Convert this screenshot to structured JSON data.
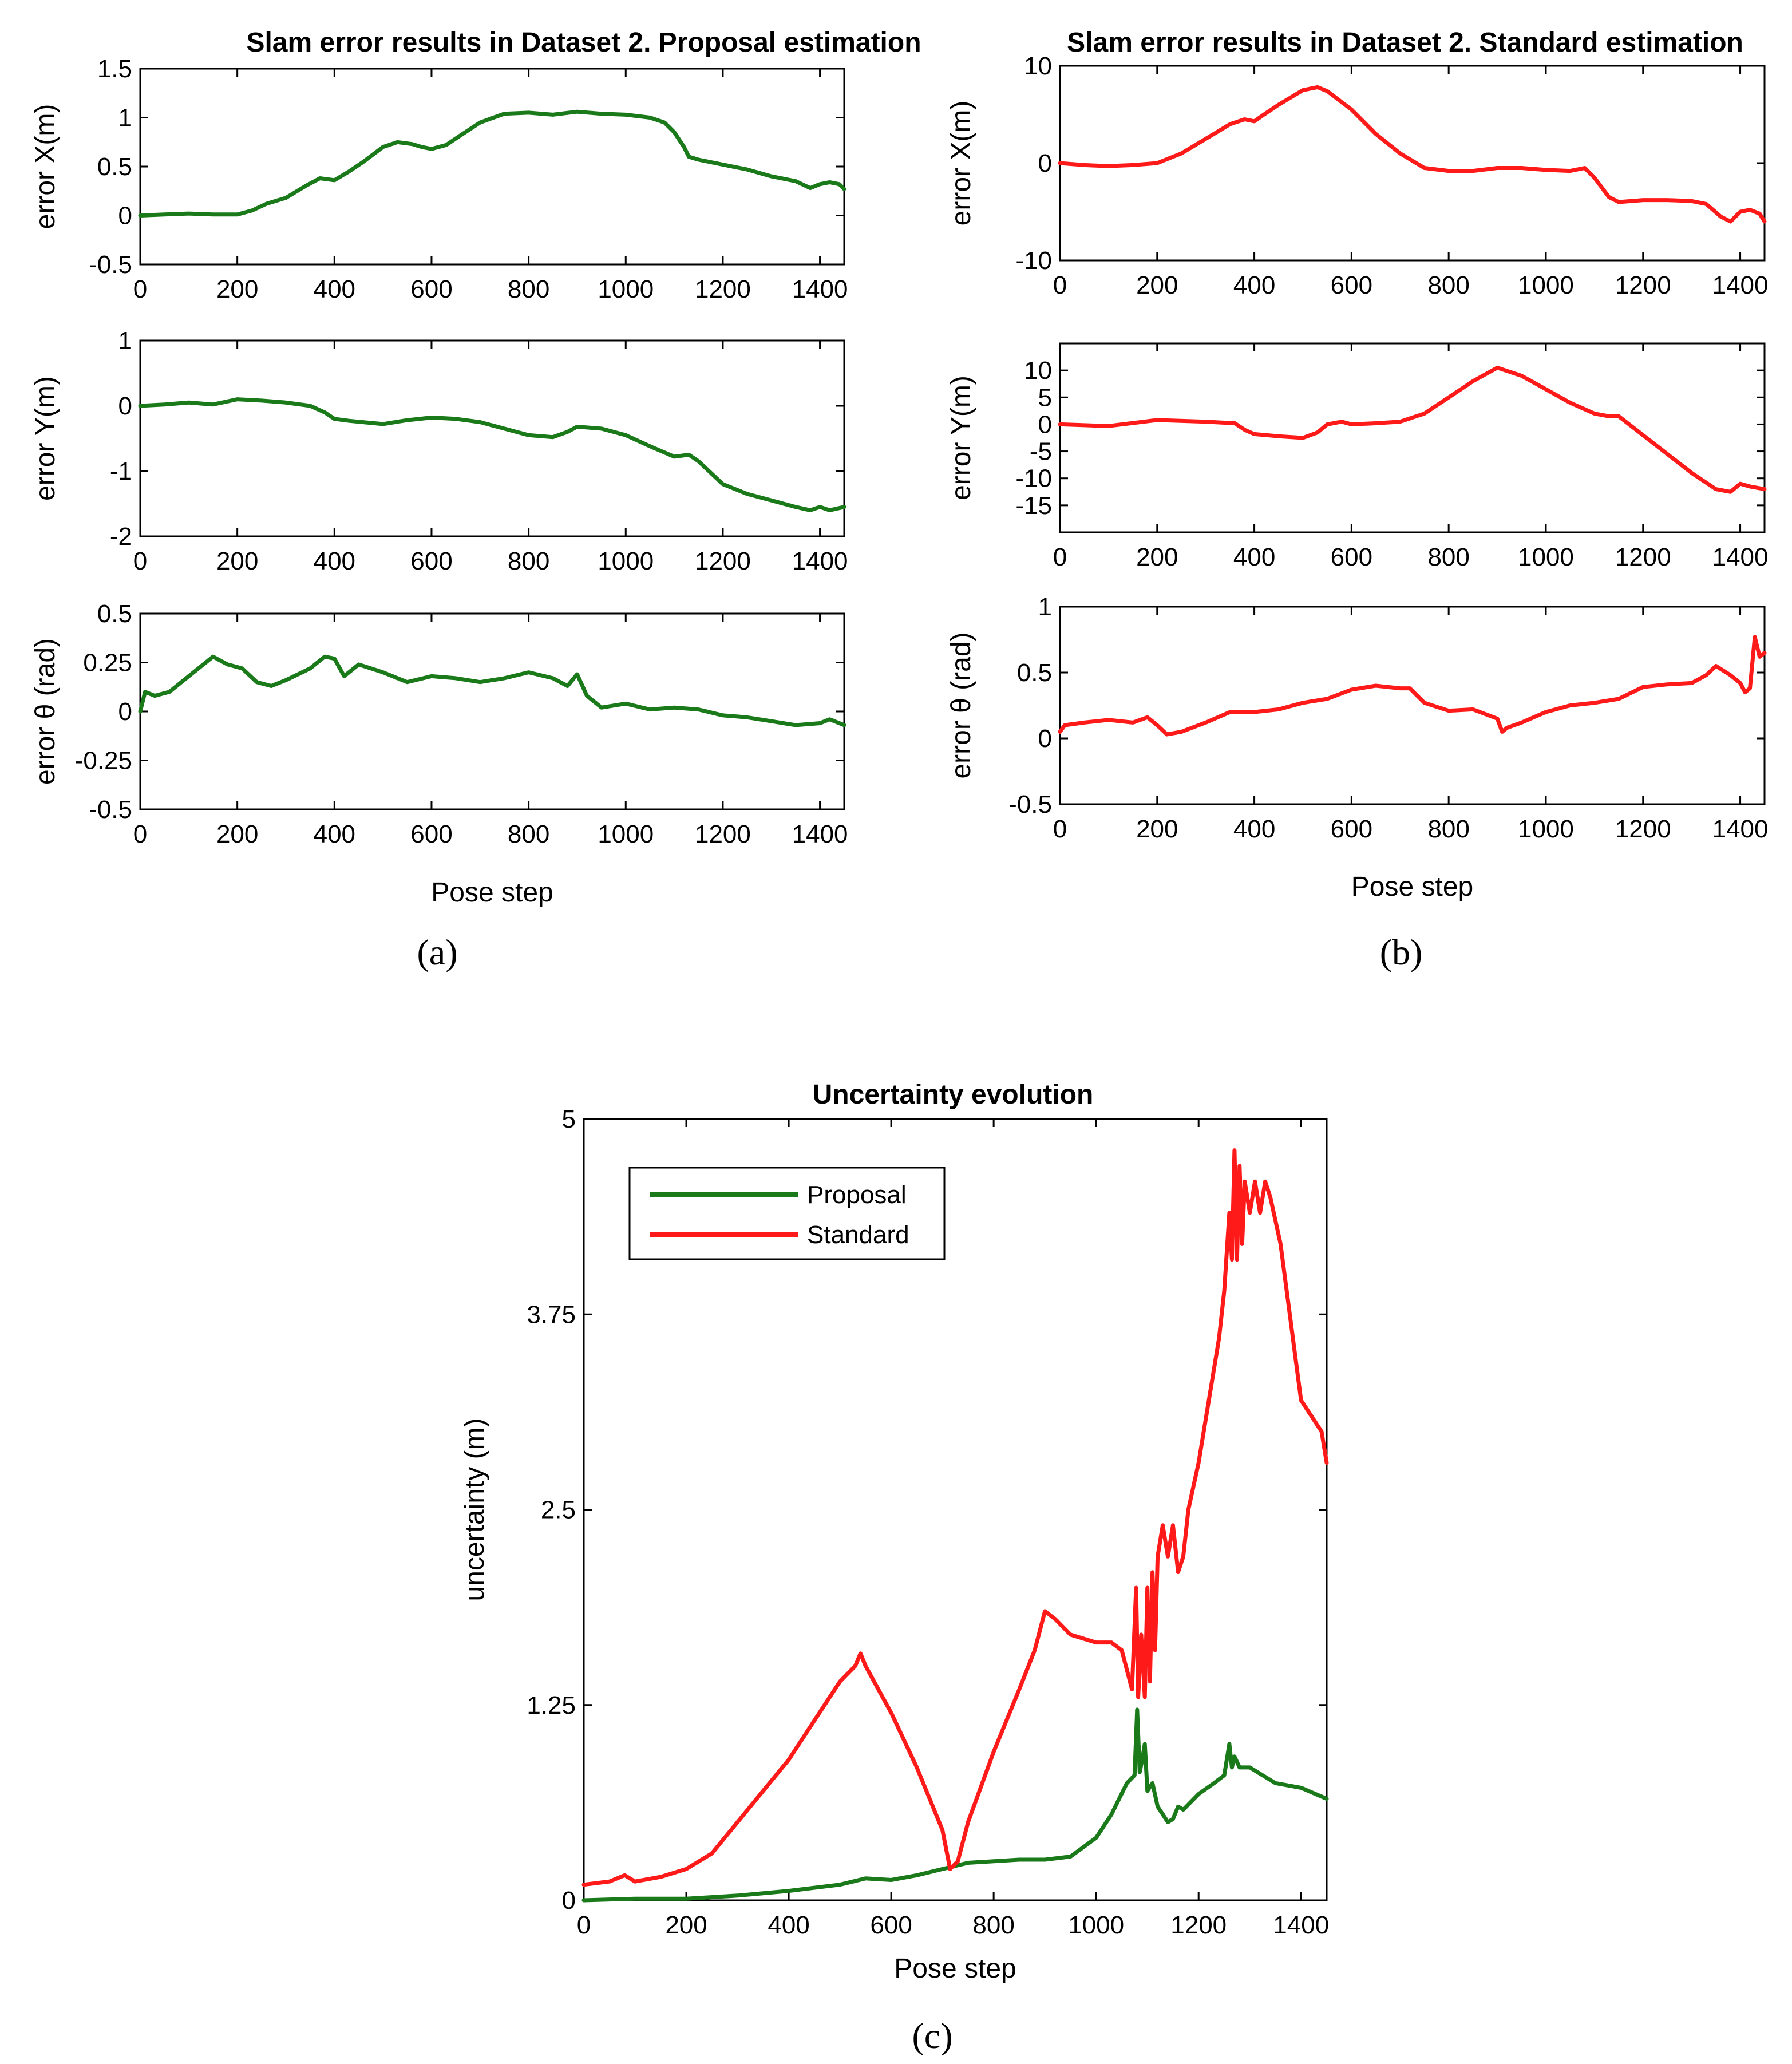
{
  "colors": {
    "proposal": "#1a7a1a",
    "standard": "#ff1a1a",
    "axis": "#000000"
  },
  "captions": {
    "a": "(a)",
    "b": "(b)",
    "c": "(c)"
  },
  "chart_data": [
    {
      "type": "line",
      "id": "a1",
      "title": "Slam error results in Dataset 2. Proposal estimation",
      "xlabel": "",
      "ylabel": "error X(m)",
      "xlim": [
        0,
        1450
      ],
      "ylim": [
        -0.5,
        1.5
      ],
      "xticks": [
        0,
        200,
        400,
        600,
        800,
        1000,
        1200,
        1400
      ],
      "yticks": [
        -0.5,
        0,
        0.5,
        1,
        1.5
      ],
      "ytick_labels": [
        "-0.5",
        "0",
        "0.5",
        "1",
        "1.5"
      ],
      "series": [
        {
          "name": "Proposal",
          "color": "#1a7a1a",
          "x": [
            0,
            50,
            100,
            150,
            200,
            230,
            260,
            300,
            340,
            370,
            400,
            430,
            460,
            500,
            530,
            560,
            580,
            600,
            630,
            660,
            700,
            750,
            800,
            850,
            900,
            950,
            1000,
            1050,
            1080,
            1100,
            1120,
            1130,
            1150,
            1200,
            1250,
            1300,
            1350,
            1380,
            1400,
            1420,
            1440,
            1450
          ],
          "y": [
            0,
            0.01,
            0.02,
            0.01,
            0.01,
            0.05,
            0.12,
            0.18,
            0.3,
            0.38,
            0.36,
            0.45,
            0.55,
            0.7,
            0.75,
            0.73,
            0.7,
            0.68,
            0.72,
            0.82,
            0.95,
            1.04,
            1.05,
            1.03,
            1.06,
            1.04,
            1.03,
            1.0,
            0.95,
            0.85,
            0.7,
            0.6,
            0.57,
            0.52,
            0.47,
            0.4,
            0.35,
            0.28,
            0.32,
            0.34,
            0.32,
            0.27
          ]
        }
      ]
    },
    {
      "type": "line",
      "id": "a2",
      "title": "",
      "xlabel": "",
      "ylabel": "error Y(m)",
      "xlim": [
        0,
        1450
      ],
      "ylim": [
        -2,
        1
      ],
      "xticks": [
        0,
        200,
        400,
        600,
        800,
        1000,
        1200,
        1400
      ],
      "yticks": [
        -2,
        -1,
        0,
        1
      ],
      "ytick_labels": [
        "-2",
        "-1",
        "0",
        "1"
      ],
      "series": [
        {
          "name": "Proposal",
          "color": "#1a7a1a",
          "x": [
            0,
            50,
            100,
            150,
            200,
            250,
            300,
            350,
            380,
            400,
            430,
            500,
            550,
            600,
            650,
            700,
            750,
            800,
            850,
            880,
            900,
            950,
            1000,
            1050,
            1100,
            1130,
            1150,
            1200,
            1250,
            1300,
            1350,
            1380,
            1400,
            1420,
            1450
          ],
          "y": [
            0,
            0.02,
            0.05,
            0.02,
            0.1,
            0.08,
            0.05,
            0.0,
            -0.1,
            -0.2,
            -0.23,
            -0.28,
            -0.22,
            -0.18,
            -0.2,
            -0.25,
            -0.35,
            -0.45,
            -0.48,
            -0.4,
            -0.32,
            -0.35,
            -0.45,
            -0.62,
            -0.78,
            -0.75,
            -0.85,
            -1.2,
            -1.35,
            -1.45,
            -1.55,
            -1.6,
            -1.55,
            -1.6,
            -1.55
          ]
        }
      ]
    },
    {
      "type": "line",
      "id": "a3",
      "title": "",
      "xlabel": "Pose step",
      "ylabel": "error θ (rad)",
      "xlim": [
        0,
        1450
      ],
      "ylim": [
        -0.5,
        0.5
      ],
      "xticks": [
        0,
        200,
        400,
        600,
        800,
        1000,
        1200,
        1400
      ],
      "yticks": [
        -0.5,
        -0.25,
        0,
        0.25,
        0.5
      ],
      "ytick_labels": [
        "-0.5",
        "-0.25",
        "0",
        "0.25",
        "0.5"
      ],
      "series": [
        {
          "name": "Proposal",
          "color": "#1a7a1a",
          "x": [
            0,
            10,
            30,
            60,
            100,
            150,
            180,
            210,
            240,
            270,
            300,
            350,
            380,
            400,
            420,
            450,
            500,
            550,
            600,
            650,
            700,
            750,
            800,
            850,
            880,
            900,
            920,
            950,
            1000,
            1050,
            1100,
            1150,
            1200,
            1250,
            1300,
            1350,
            1400,
            1420,
            1450
          ],
          "y": [
            0.0,
            0.1,
            0.08,
            0.1,
            0.18,
            0.28,
            0.24,
            0.22,
            0.15,
            0.13,
            0.16,
            0.22,
            0.28,
            0.27,
            0.18,
            0.24,
            0.2,
            0.15,
            0.18,
            0.17,
            0.15,
            0.17,
            0.2,
            0.17,
            0.13,
            0.19,
            0.08,
            0.02,
            0.04,
            0.01,
            0.02,
            0.01,
            -0.02,
            -0.03,
            -0.05,
            -0.07,
            -0.06,
            -0.04,
            -0.07
          ]
        }
      ]
    },
    {
      "type": "line",
      "id": "b1",
      "title": "Slam error results in Dataset 2. Standard estimation",
      "xlabel": "",
      "ylabel": "error X(m)",
      "xlim": [
        0,
        1450
      ],
      "ylim": [
        -10,
        10
      ],
      "xticks": [
        0,
        200,
        400,
        600,
        800,
        1000,
        1200,
        1400
      ],
      "yticks": [
        -10,
        0,
        10
      ],
      "ytick_labels": [
        "-10",
        "0",
        "10"
      ],
      "series": [
        {
          "name": "Standard",
          "color": "#ff1a1a",
          "x": [
            0,
            50,
            100,
            150,
            200,
            250,
            300,
            350,
            380,
            400,
            420,
            450,
            500,
            530,
            550,
            600,
            650,
            700,
            750,
            800,
            850,
            900,
            950,
            1000,
            1050,
            1080,
            1100,
            1130,
            1150,
            1200,
            1250,
            1300,
            1330,
            1360,
            1380,
            1400,
            1420,
            1440,
            1450
          ],
          "y": [
            0,
            -0.2,
            -0.3,
            -0.2,
            0,
            1,
            2.5,
            4,
            4.5,
            4.3,
            5,
            6,
            7.5,
            7.8,
            7.4,
            5.5,
            3,
            1,
            -0.5,
            -0.8,
            -0.8,
            -0.5,
            -0.5,
            -0.7,
            -0.8,
            -0.5,
            -1.5,
            -3.5,
            -4,
            -3.8,
            -3.8,
            -3.9,
            -4.2,
            -5.5,
            -6,
            -5,
            -4.8,
            -5.2,
            -6
          ]
        }
      ]
    },
    {
      "type": "line",
      "id": "b2",
      "title": "",
      "xlabel": "",
      "ylabel": "error Y(m)",
      "xlim": [
        0,
        1450
      ],
      "ylim": [
        -20,
        15
      ],
      "xticks": [
        0,
        200,
        400,
        600,
        800,
        1000,
        1200,
        1400
      ],
      "yticks": [
        -15,
        -10,
        -5,
        0,
        5,
        10
      ],
      "ytick_labels": [
        "-15",
        "-10",
        "-5",
        "0",
        "5",
        "10"
      ],
      "series": [
        {
          "name": "Standard",
          "color": "#ff1a1a",
          "x": [
            0,
            100,
            200,
            300,
            360,
            380,
            400,
            450,
            500,
            530,
            550,
            580,
            600,
            650,
            700,
            750,
            800,
            850,
            900,
            950,
            1000,
            1050,
            1100,
            1130,
            1150,
            1200,
            1250,
            1300,
            1350,
            1380,
            1400,
            1420,
            1450
          ],
          "y": [
            0,
            -0.3,
            0.8,
            0.5,
            0.2,
            -1,
            -1.8,
            -2.2,
            -2.5,
            -1.5,
            0,
            0.5,
            0,
            0.2,
            0.5,
            2,
            5,
            8,
            10.5,
            9,
            6.5,
            4,
            2,
            1.5,
            1.5,
            -2,
            -5.5,
            -9,
            -12,
            -12.5,
            -11,
            -11.5,
            -12
          ]
        }
      ]
    },
    {
      "type": "line",
      "id": "b3",
      "title": "",
      "xlabel": "Pose step",
      "ylabel": "error θ (rad)",
      "xlim": [
        0,
        1450
      ],
      "ylim": [
        -0.5,
        1
      ],
      "xticks": [
        0,
        200,
        400,
        600,
        800,
        1000,
        1200,
        1400
      ],
      "yticks": [
        -0.5,
        0,
        0.5,
        1
      ],
      "ytick_labels": [
        "-0.5",
        "0",
        "0.5",
        "1"
      ],
      "series": [
        {
          "name": "Standard",
          "color": "#ff1a1a",
          "x": [
            0,
            10,
            50,
            100,
            150,
            180,
            200,
            220,
            250,
            300,
            350,
            400,
            450,
            500,
            550,
            600,
            650,
            700,
            720,
            750,
            800,
            850,
            900,
            910,
            920,
            950,
            1000,
            1050,
            1100,
            1150,
            1200,
            1250,
            1300,
            1330,
            1350,
            1380,
            1400,
            1410,
            1420,
            1430,
            1440,
            1450
          ],
          "y": [
            0.05,
            0.1,
            0.12,
            0.14,
            0.12,
            0.16,
            0.1,
            0.03,
            0.05,
            0.12,
            0.2,
            0.2,
            0.22,
            0.27,
            0.3,
            0.37,
            0.4,
            0.38,
            0.38,
            0.27,
            0.21,
            0.22,
            0.15,
            0.05,
            0.08,
            0.12,
            0.2,
            0.25,
            0.27,
            0.3,
            0.39,
            0.41,
            0.42,
            0.48,
            0.55,
            0.48,
            0.42,
            0.35,
            0.38,
            0.77,
            0.62,
            0.65
          ]
        }
      ]
    },
    {
      "type": "line",
      "id": "c",
      "title": "Uncertainty evolution",
      "xlabel": "Pose step",
      "ylabel": "uncertainty (m)",
      "xlim": [
        0,
        1450
      ],
      "ylim": [
        0,
        5
      ],
      "xticks": [
        0,
        200,
        400,
        600,
        800,
        1000,
        1200,
        1400
      ],
      "yticks": [
        0,
        1.25,
        2.5,
        3.75,
        5
      ],
      "ytick_labels": [
        "0",
        "1.25",
        "2.5",
        "3.75",
        "5"
      ],
      "legend": {
        "position": "top-left",
        "entries": [
          "Proposal",
          "Standard"
        ]
      },
      "series": [
        {
          "name": "Proposal",
          "color": "#1a7a1a",
          "x": [
            0,
            100,
            200,
            300,
            400,
            500,
            550,
            600,
            650,
            700,
            750,
            800,
            850,
            900,
            950,
            1000,
            1030,
            1060,
            1075,
            1080,
            1085,
            1090,
            1095,
            1100,
            1110,
            1120,
            1140,
            1150,
            1160,
            1170,
            1200,
            1230,
            1250,
            1260,
            1265,
            1270,
            1280,
            1300,
            1350,
            1400,
            1450
          ],
          "y": [
            0,
            0.01,
            0.01,
            0.03,
            0.06,
            0.1,
            0.14,
            0.13,
            0.16,
            0.2,
            0.24,
            0.25,
            0.26,
            0.26,
            0.28,
            0.4,
            0.55,
            0.75,
            0.8,
            1.22,
            0.82,
            0.9,
            1.0,
            0.7,
            0.75,
            0.6,
            0.5,
            0.52,
            0.6,
            0.58,
            0.68,
            0.75,
            0.8,
            1.0,
            0.85,
            0.92,
            0.85,
            0.85,
            0.75,
            0.72,
            0.65
          ]
        },
        {
          "name": "Standard",
          "color": "#ff1a1a",
          "x": [
            0,
            50,
            80,
            100,
            150,
            200,
            250,
            300,
            350,
            400,
            450,
            500,
            530,
            540,
            550,
            600,
            650,
            700,
            715,
            730,
            750,
            800,
            850,
            880,
            900,
            920,
            950,
            1000,
            1030,
            1050,
            1070,
            1078,
            1082,
            1088,
            1095,
            1100,
            1105,
            1110,
            1115,
            1120,
            1130,
            1140,
            1150,
            1160,
            1170,
            1180,
            1200,
            1220,
            1240,
            1250,
            1260,
            1265,
            1270,
            1275,
            1280,
            1285,
            1290,
            1300,
            1310,
            1320,
            1330,
            1340,
            1360,
            1380,
            1400,
            1420,
            1440,
            1450
          ],
          "y": [
            0.1,
            0.12,
            0.16,
            0.12,
            0.15,
            0.2,
            0.3,
            0.5,
            0.7,
            0.9,
            1.15,
            1.4,
            1.5,
            1.58,
            1.5,
            1.2,
            0.85,
            0.45,
            0.2,
            0.25,
            0.5,
            0.95,
            1.35,
            1.6,
            1.85,
            1.8,
            1.7,
            1.65,
            1.65,
            1.6,
            1.35,
            2.0,
            1.3,
            1.7,
            1.3,
            2.0,
            1.4,
            2.1,
            1.6,
            2.2,
            2.4,
            2.2,
            2.4,
            2.1,
            2.2,
            2.5,
            2.8,
            3.2,
            3.6,
            3.9,
            4.4,
            4.1,
            4.8,
            4.1,
            4.7,
            4.2,
            4.6,
            4.4,
            4.6,
            4.4,
            4.6,
            4.5,
            4.2,
            3.7,
            3.2,
            3.1,
            3.0,
            2.8
          ]
        }
      ]
    }
  ]
}
